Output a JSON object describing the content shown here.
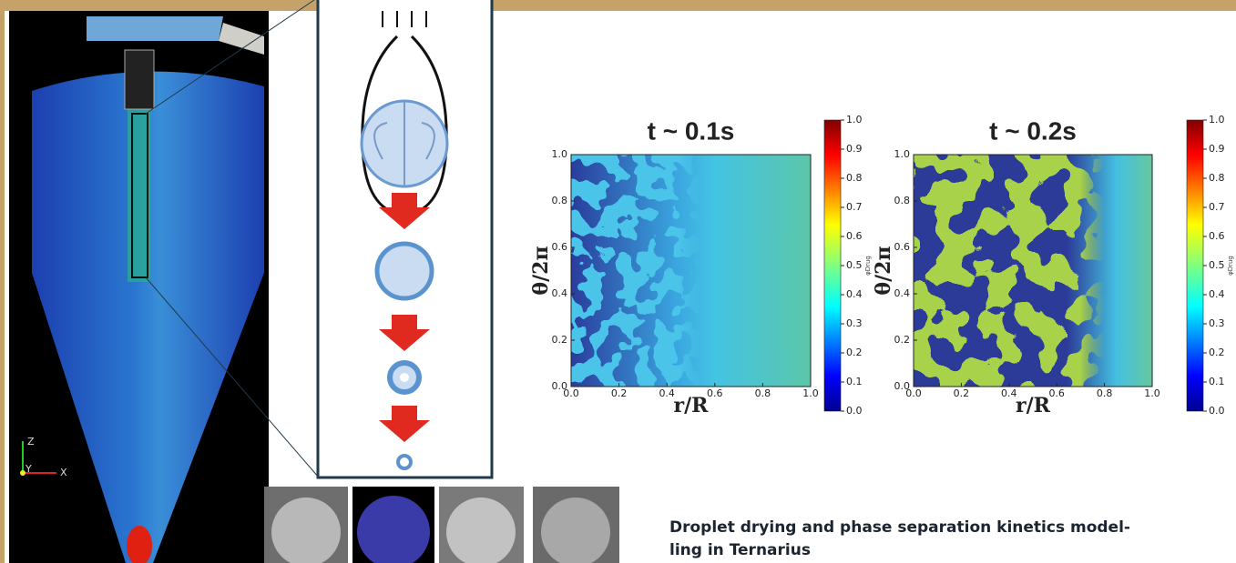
{
  "left_panel": {
    "axis_labels": [
      "Z",
      "Y",
      "X"
    ]
  },
  "plots": [
    {
      "title": "t ~ 0.1s",
      "xlabel": "r/R",
      "ylabel": "θ/2π",
      "xticks": [
        "0.0",
        "0.2",
        "0.4",
        "0.6",
        "0.8",
        "1.0"
      ],
      "yticks": [
        "0.0",
        "0.2",
        "0.4",
        "0.6",
        "0.8",
        "1.0"
      ],
      "colorbar_ticks": [
        "0.0",
        "0.1",
        "0.2",
        "0.3",
        "0.4",
        "0.5",
        "0.6",
        "0.7",
        "0.8",
        "0.9",
        "1.0"
      ],
      "colorbar_label": "φDrug"
    },
    {
      "title": "t ~ 0.2s",
      "xlabel": "r/R",
      "ylabel": "θ/2π",
      "xticks": [
        "0.0",
        "0.2",
        "0.4",
        "0.6",
        "0.8",
        "1.0"
      ],
      "yticks": [
        "0.0",
        "0.2",
        "0.4",
        "0.6",
        "0.8",
        "1.0"
      ],
      "colorbar_ticks": [
        "0.0",
        "0.1",
        "0.2",
        "0.3",
        "0.4",
        "0.5",
        "0.6",
        "0.7",
        "0.8",
        "0.9",
        "1.0"
      ],
      "colorbar_label": "φDrug"
    }
  ],
  "caption": [
    "Droplet drying and phase separation kinetics model-",
    "ling in Ternarius"
  ]
}
